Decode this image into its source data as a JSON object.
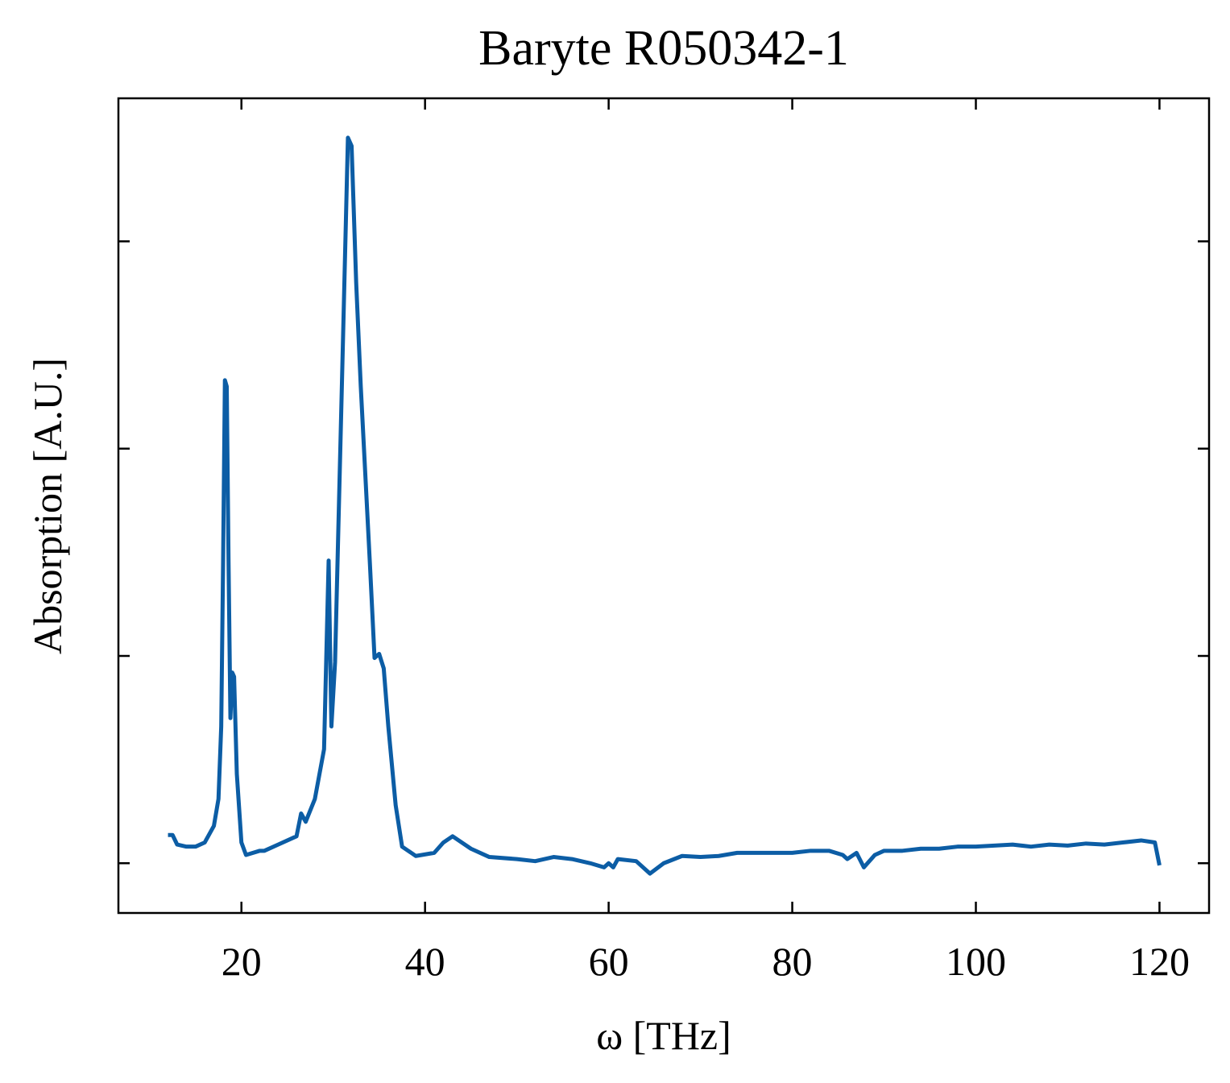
{
  "chart_data": {
    "type": "line",
    "title": "Baryte R050342-1",
    "xlabel": "ω [THz]",
    "ylabel": "Absorption [A.U.]",
    "color": "#0c5da5",
    "x": [
      12,
      12.5,
      13,
      14,
      15,
      16,
      17,
      17.5,
      17.8,
      18,
      18.2,
      18.4,
      18.6,
      18.8,
      19.0,
      19.2,
      19.5,
      20,
      20.5,
      22,
      22.5,
      24,
      26,
      26.5,
      27,
      28,
      29,
      29.5,
      29.8,
      30.2,
      31,
      31.6,
      32,
      32.5,
      33,
      34,
      34.5,
      35,
      35.5,
      36,
      36.8,
      37.5,
      39,
      41,
      42,
      43,
      45,
      47,
      50,
      52,
      54,
      56,
      58,
      59.5,
      60,
      60.5,
      61,
      63,
      64.5,
      66,
      68,
      70,
      72,
      74,
      76,
      78,
      80,
      82,
      84,
      85.5,
      86,
      87,
      87.8,
      89,
      90,
      92,
      94,
      96,
      98,
      100,
      102,
      104,
      106,
      108,
      110,
      112,
      114,
      116,
      118,
      119.5,
      120
    ],
    "values": [
      0.136,
      0.136,
      0.09,
      0.08,
      0.08,
      0.1,
      0.18,
      0.31,
      0.66,
      1.44,
      2.33,
      2.3,
      1.44,
      0.7,
      0.92,
      0.9,
      0.43,
      0.1,
      0.04,
      0.06,
      0.06,
      0.09,
      0.13,
      0.24,
      0.2,
      0.31,
      0.55,
      1.46,
      0.66,
      0.97,
      2.41,
      3.5,
      3.46,
      2.8,
      2.3,
      1.44,
      0.99,
      1.01,
      0.94,
      0.66,
      0.28,
      0.08,
      0.035,
      0.05,
      0.1,
      0.13,
      0.07,
      0.03,
      0.02,
      0.01,
      0.03,
      0.02,
      0.0,
      -0.02,
      0.0,
      -0.02,
      0.02,
      0.01,
      -0.05,
      0.0,
      0.035,
      0.03,
      0.035,
      0.05,
      0.05,
      0.05,
      0.05,
      0.06,
      0.06,
      0.04,
      0.02,
      0.05,
      -0.02,
      0.04,
      0.06,
      0.06,
      0.07,
      0.07,
      0.08,
      0.08,
      0.085,
      0.09,
      0.08,
      0.09,
      0.085,
      0.095,
      0.09,
      0.1,
      0.11,
      0.1,
      -0.01
    ],
    "xlim": [
      6.6,
      125.4
    ],
    "xticks": [
      20,
      40,
      60,
      80,
      100,
      120
    ],
    "ylim": [
      -0.24,
      3.69
    ],
    "yticks": [
      0,
      1,
      2,
      3
    ]
  }
}
